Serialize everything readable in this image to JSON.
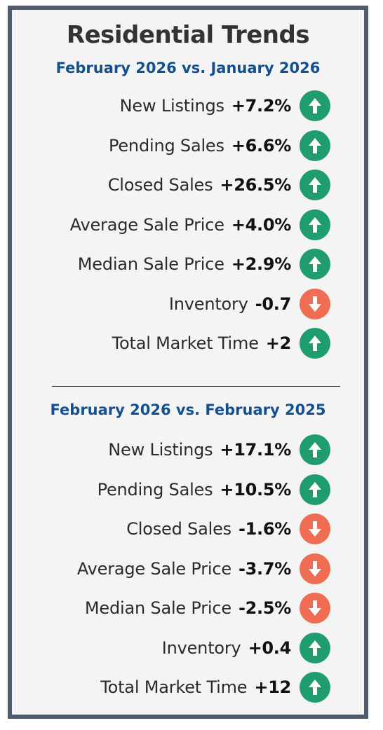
{
  "title": "Residential Trends",
  "colors": {
    "up": "#1f9d6e",
    "down": "#ef6d52",
    "heading": "#14508f",
    "border": "#4d5d6e"
  },
  "sections": [
    {
      "heading": "February 2026 vs. January 2026",
      "rows": [
        {
          "label": "New Listings",
          "value": "+7.2%",
          "direction": "up",
          "icon": "arrow-up-icon"
        },
        {
          "label": "Pending Sales",
          "value": "+6.6%",
          "direction": "up",
          "icon": "arrow-up-icon"
        },
        {
          "label": "Closed Sales",
          "value": "+26.5%",
          "direction": "up",
          "icon": "arrow-up-icon"
        },
        {
          "label": "Average Sale Price",
          "value": "+4.0%",
          "direction": "up",
          "icon": "arrow-up-icon"
        },
        {
          "label": "Median Sale Price",
          "value": "+2.9%",
          "direction": "up",
          "icon": "arrow-up-icon"
        },
        {
          "label": "Inventory",
          "value": "-0.7",
          "direction": "down",
          "icon": "arrow-down-icon"
        },
        {
          "label": "Total Market Time",
          "value": "+2",
          "direction": "up",
          "icon": "arrow-up-icon"
        }
      ]
    },
    {
      "heading": "February 2026 vs. February 2025",
      "rows": [
        {
          "label": "New Listings",
          "value": "+17.1%",
          "direction": "up",
          "icon": "arrow-up-icon"
        },
        {
          "label": "Pending Sales",
          "value": "+10.5%",
          "direction": "up",
          "icon": "arrow-up-icon"
        },
        {
          "label": "Closed Sales",
          "value": "-1.6%",
          "direction": "down",
          "icon": "arrow-down-icon"
        },
        {
          "label": "Average Sale Price",
          "value": "-3.7%",
          "direction": "down",
          "icon": "arrow-down-icon"
        },
        {
          "label": "Median Sale Price",
          "value": "-2.5%",
          "direction": "down",
          "icon": "arrow-down-icon"
        },
        {
          "label": "Inventory",
          "value": "+0.4",
          "direction": "up",
          "icon": "arrow-up-icon"
        },
        {
          "label": "Total Market Time",
          "value": "+12",
          "direction": "up",
          "icon": "arrow-up-icon"
        }
      ]
    }
  ]
}
